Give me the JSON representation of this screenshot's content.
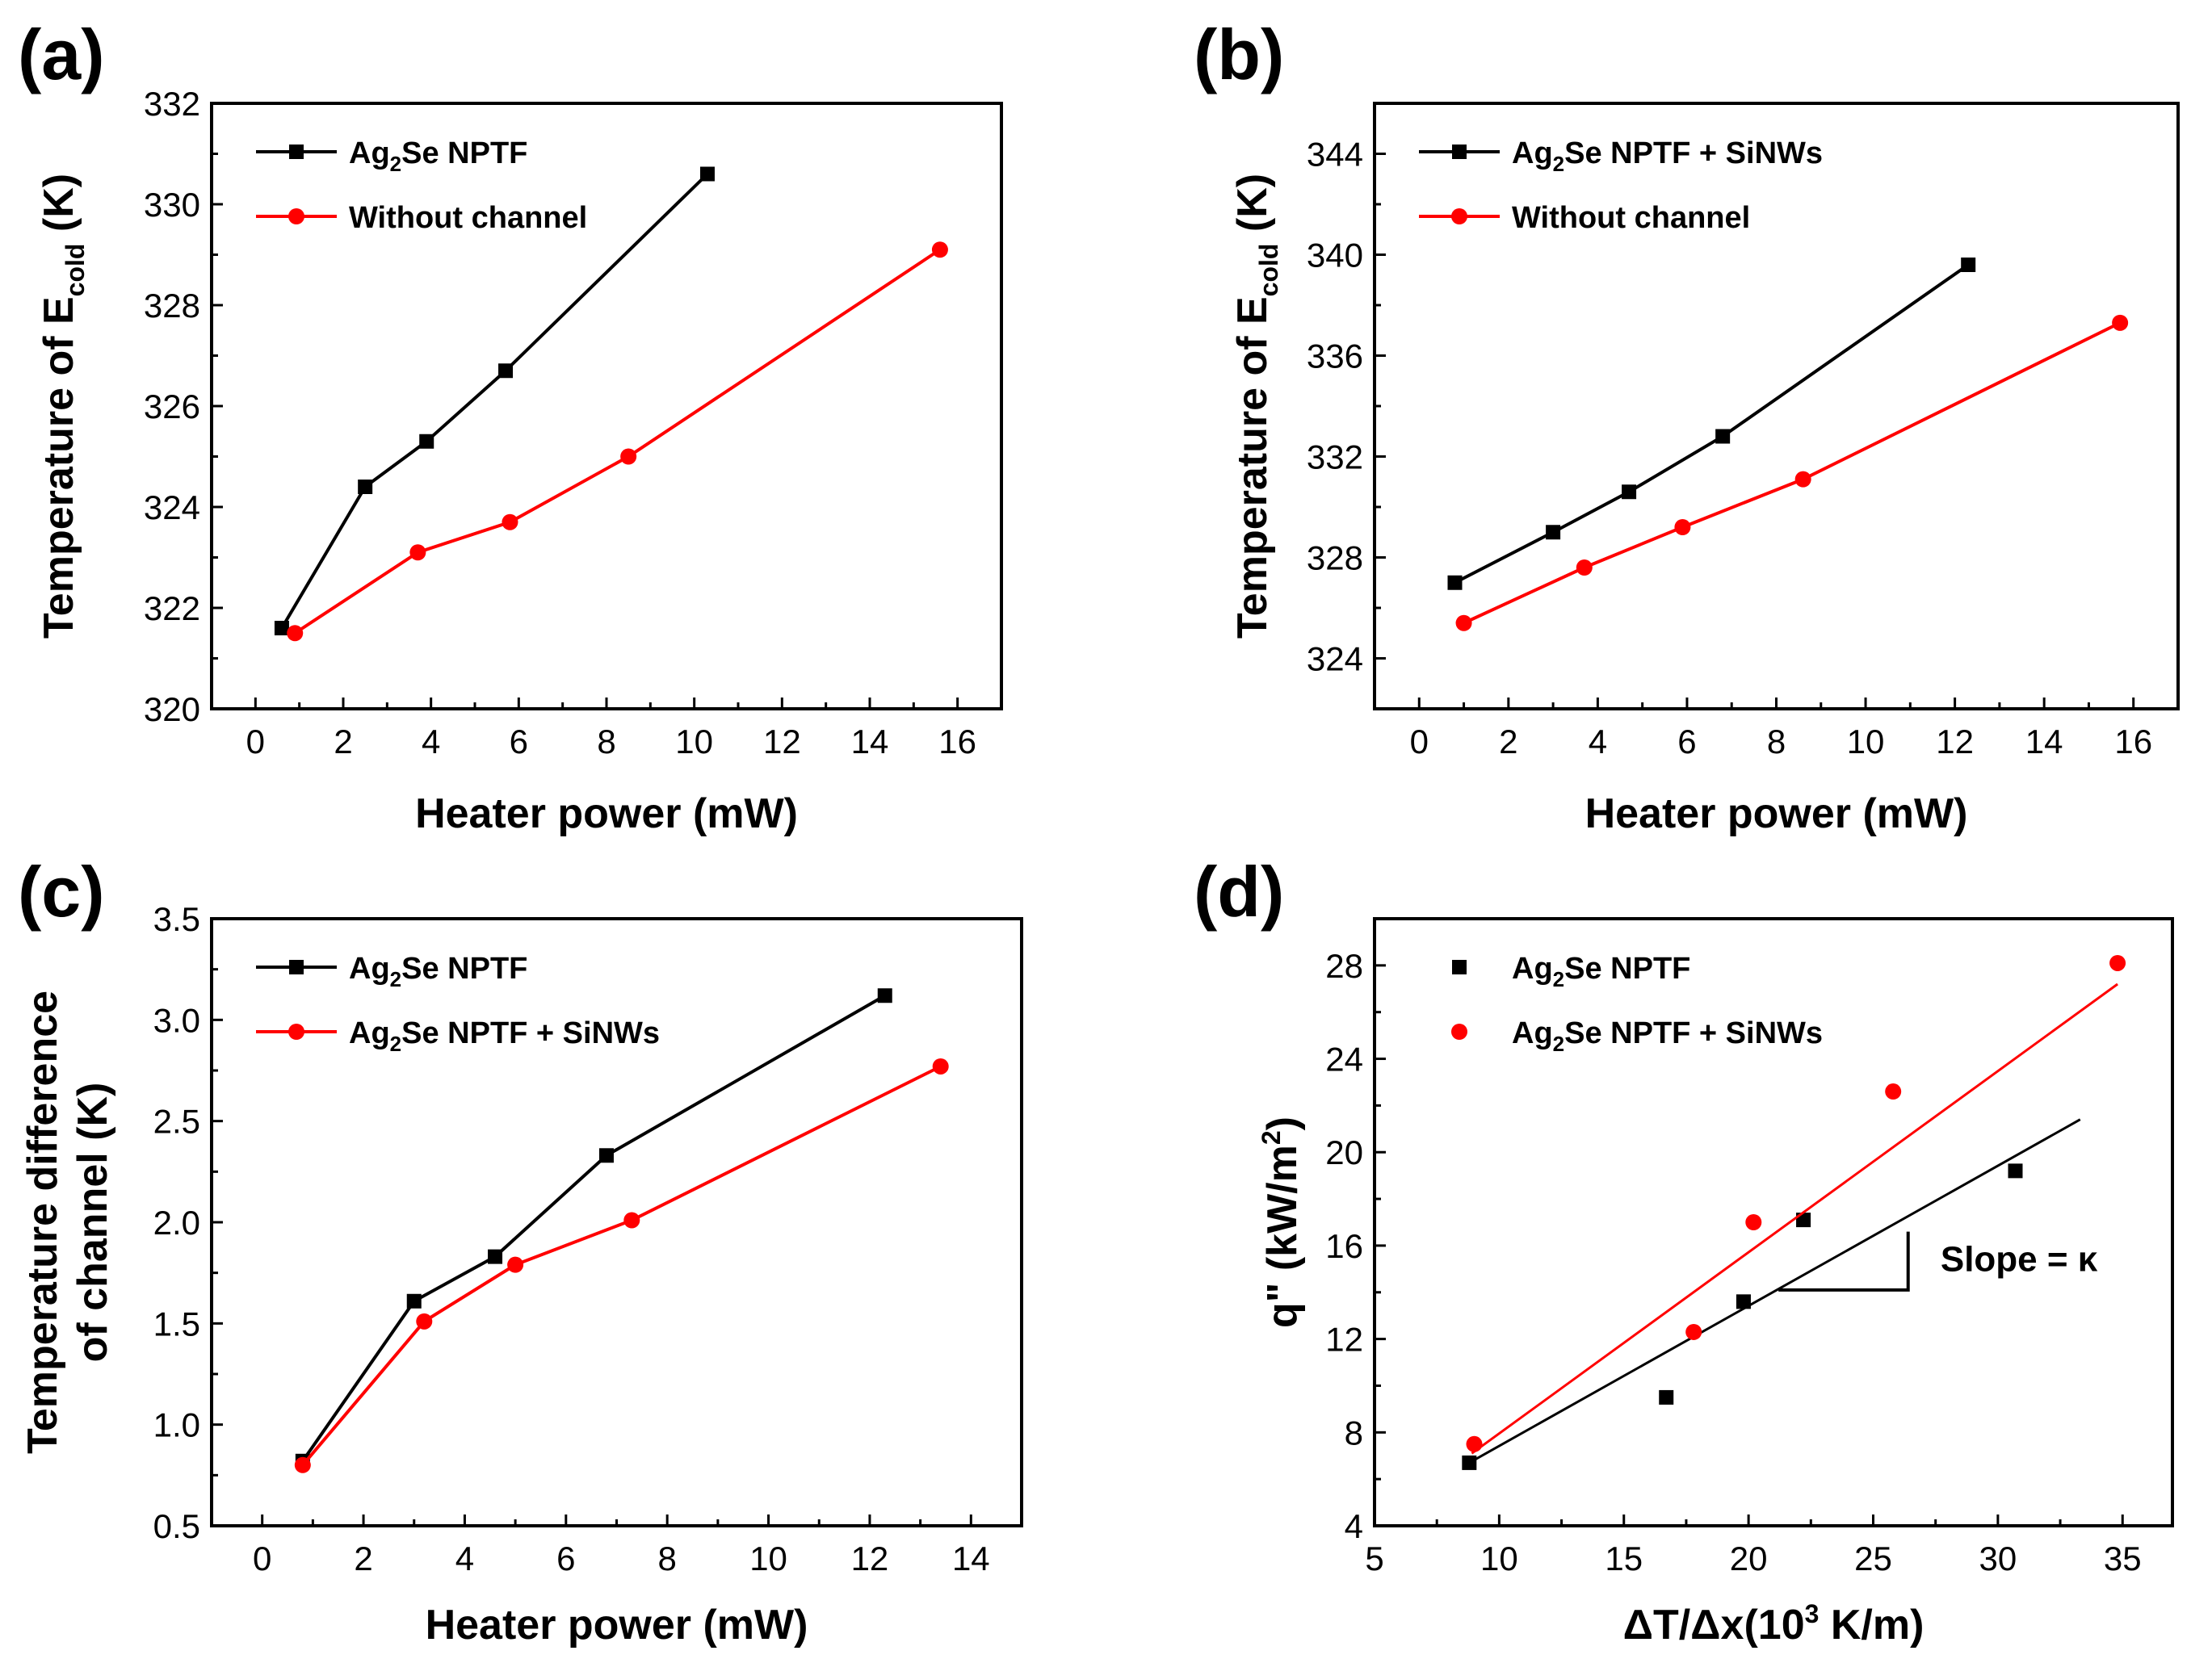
{
  "chart_data": [
    {
      "panel": "(a)",
      "type": "line",
      "xlabel": "Heater power (mW)",
      "ylabel": "Temperature of E_cold (K)",
      "ylabel_parts": {
        "prefix": "Temperature of E",
        "sub": "cold",
        "suffix": " (K)"
      },
      "xlim": [
        -1,
        17
      ],
      "ylim": [
        320,
        332
      ],
      "xticks": [
        "0",
        "2",
        "4",
        "6",
        "8",
        "10",
        "12",
        "14",
        "16"
      ],
      "yticks": [
        "320",
        "322",
        "324",
        "326",
        "328",
        "330",
        "332"
      ],
      "legend_position": "top-left",
      "series": [
        {
          "name": "Ag2Se NPTF",
          "name_parts": {
            "a": "Ag",
            "sub": "2",
            "b": "Se NPTF"
          },
          "color": "#000000",
          "marker": "square",
          "x": [
            0.6,
            2.5,
            3.9,
            5.7,
            10.3
          ],
          "y": [
            321.6,
            324.4,
            325.3,
            326.7,
            330.6
          ]
        },
        {
          "name": "Without channel",
          "name_parts": {
            "a": "Without channel",
            "sub": "",
            "b": ""
          },
          "color": "#ff0000",
          "marker": "circle",
          "x": [
            0.9,
            3.7,
            5.8,
            8.5,
            15.6
          ],
          "y": [
            321.5,
            323.1,
            323.7,
            325.0,
            329.1
          ]
        }
      ]
    },
    {
      "panel": "(b)",
      "type": "line",
      "xlabel": "Heater power (mW)",
      "ylabel": "Temperature of E_cold (K)",
      "ylabel_parts": {
        "prefix": "Temperature of E",
        "sub": "cold",
        "suffix": " (K)"
      },
      "xlim": [
        -1,
        17
      ],
      "ylim": [
        322,
        346
      ],
      "xticks": [
        "0",
        "2",
        "4",
        "6",
        "8",
        "10",
        "12",
        "14",
        "16"
      ],
      "yticks": [
        "324",
        "328",
        "332",
        "336",
        "340",
        "344"
      ],
      "legend_position": "top-left",
      "series": [
        {
          "name": "Ag2Se NPTF + SiNWs",
          "name_parts": {
            "a": "Ag",
            "sub": "2",
            "b": "Se NPTF + SiNWs"
          },
          "color": "#000000",
          "marker": "square",
          "x": [
            0.8,
            3.0,
            4.7,
            6.8,
            12.3
          ],
          "y": [
            327.0,
            329.0,
            330.6,
            332.8,
            339.6
          ]
        },
        {
          "name": "Without channel",
          "name_parts": {
            "a": "Without channel",
            "sub": "",
            "b": ""
          },
          "color": "#ff0000",
          "marker": "circle",
          "x": [
            1.0,
            3.7,
            5.9,
            8.6,
            15.7
          ],
          "y": [
            325.4,
            327.6,
            329.2,
            331.1,
            337.3
          ]
        }
      ]
    },
    {
      "panel": "(c)",
      "type": "line",
      "xlabel": "Heater power (mW)",
      "ylabel": "Temperature difference of channel (K)",
      "ylabel_lines": [
        "Temperature difference",
        "of channel (K)"
      ],
      "xlim": [
        -1,
        15
      ],
      "ylim": [
        0.5,
        3.5
      ],
      "xticks": [
        "0",
        "2",
        "4",
        "6",
        "8",
        "10",
        "12",
        "14"
      ],
      "yticks": [
        "0.5",
        "1.0",
        "1.5",
        "2.0",
        "2.5",
        "3.0",
        "3.5"
      ],
      "legend_position": "top-left",
      "series": [
        {
          "name": "Ag2Se NPTF",
          "name_parts": {
            "a": "Ag",
            "sub": "2",
            "b": "Se NPTF"
          },
          "color": "#000000",
          "marker": "square",
          "x": [
            0.8,
            3.0,
            4.6,
            6.8,
            12.3
          ],
          "y": [
            0.82,
            1.61,
            1.83,
            2.33,
            3.12
          ]
        },
        {
          "name": "Ag2Se NPTF + SiNWs",
          "name_parts": {
            "a": "Ag",
            "sub": "2",
            "b": "Se NPTF + SiNWs"
          },
          "color": "#ff0000",
          "marker": "circle",
          "x": [
            0.8,
            3.2,
            5.0,
            7.3,
            13.4
          ],
          "y": [
            0.8,
            1.51,
            1.79,
            2.01,
            2.77
          ]
        }
      ]
    },
    {
      "panel": "(d)",
      "type": "scatter",
      "xlabel": "ΔT/Δx(10³ K/m)",
      "xlabel_parts": {
        "prefix": "ΔT/Δx(10",
        "sup": "3",
        "suffix": " K/m)"
      },
      "ylabel": "q\" (kW/m²)",
      "ylabel_parts": {
        "prefix": "q\" (kW/m",
        "sup": "2",
        "suffix": ")"
      },
      "xlim": [
        5,
        37
      ],
      "ylim": [
        4,
        30
      ],
      "xticks": [
        "5",
        "10",
        "15",
        "20",
        "25",
        "30",
        "35"
      ],
      "yticks": [
        "4",
        "8",
        "12",
        "16",
        "20",
        "24",
        "28"
      ],
      "legend_position": "top-left",
      "annotation": "Slope = κ",
      "series": [
        {
          "name": "Ag2Se NPTF",
          "name_parts": {
            "a": "Ag",
            "sub": "2",
            "b": "Se NPTF"
          },
          "color": "#000000",
          "marker": "square",
          "x": [
            8.8,
            16.7,
            19.8,
            22.2,
            30.7
          ],
          "y": [
            6.7,
            9.5,
            13.6,
            17.1,
            19.2
          ],
          "fit": {
            "x": [
              8.8,
              33.3
            ],
            "y": [
              6.7,
              21.4
            ]
          }
        },
        {
          "name": "Ag2Se NPTF + SiNWs",
          "name_parts": {
            "a": "Ag",
            "sub": "2",
            "b": "Se NPTF + SiNWs"
          },
          "color": "#ff0000",
          "marker": "circle",
          "x": [
            9.0,
            17.8,
            20.2,
            25.8,
            34.8
          ],
          "y": [
            7.5,
            12.3,
            17.0,
            22.6,
            28.1
          ],
          "fit": {
            "x": [
              8.9,
              34.8
            ],
            "y": [
              7.1,
              27.2
            ]
          }
        }
      ]
    }
  ]
}
